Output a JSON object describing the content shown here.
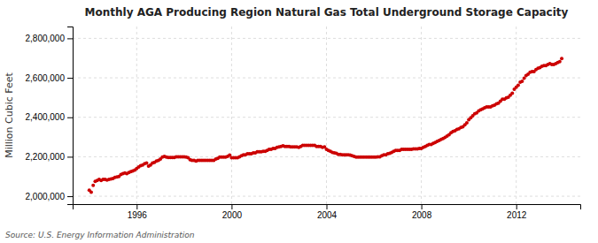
{
  "chart_data": {
    "type": "scatter",
    "title": "Monthly AGA Producing Region Natural Gas Total Underground Storage Capacity",
    "y_label": "Million Cubic Feet",
    "annotations": [
      "Source: U.S. Energy Information Administration"
    ],
    "color": "#CC0000",
    "grid": true,
    "xlim": [
      1993.3,
      2014.7
    ],
    "xticks": [
      1996,
      2000,
      2004,
      2008,
      2012
    ],
    "ylim": [
      1960000,
      2860000
    ],
    "yticks": [
      {
        "value": 2000000,
        "label": "2,000,000"
      },
      {
        "value": 2200000,
        "label": "2,200,000"
      },
      {
        "value": 2400000,
        "label": "2,400,000"
      },
      {
        "value": 2600000,
        "label": "2,600,000"
      },
      {
        "value": 2800000,
        "label": "2,800,000"
      }
    ],
    "x": [
      1994.0,
      1994.083,
      1994.167,
      1994.25,
      1994.333,
      1994.417,
      1994.5,
      1994.583,
      1994.667,
      1994.75,
      1994.833,
      1994.917,
      1995.0,
      1995.083,
      1995.167,
      1995.25,
      1995.333,
      1995.417,
      1995.5,
      1995.583,
      1995.667,
      1995.75,
      1995.833,
      1995.917,
      1996.0,
      1996.083,
      1996.167,
      1996.25,
      1996.333,
      1996.417,
      1996.5,
      1996.583,
      1996.667,
      1996.75,
      1996.833,
      1996.917,
      1997.0,
      1997.083,
      1997.167,
      1997.25,
      1997.333,
      1997.417,
      1997.5,
      1997.583,
      1997.667,
      1997.75,
      1997.833,
      1997.917,
      1998.0,
      1998.083,
      1998.167,
      1998.25,
      1998.333,
      1998.417,
      1998.5,
      1998.583,
      1998.667,
      1998.75,
      1998.833,
      1998.917,
      1999.0,
      1999.083,
      1999.167,
      1999.25,
      1999.333,
      1999.417,
      1999.5,
      1999.583,
      1999.667,
      1999.75,
      1999.833,
      1999.917,
      2000.0,
      2000.083,
      2000.167,
      2000.25,
      2000.333,
      2000.417,
      2000.5,
      2000.583,
      2000.667,
      2000.75,
      2000.833,
      2000.917,
      2001.0,
      2001.083,
      2001.167,
      2001.25,
      2001.333,
      2001.417,
      2001.5,
      2001.583,
      2001.667,
      2001.75,
      2001.833,
      2001.917,
      2002.0,
      2002.083,
      2002.167,
      2002.25,
      2002.333,
      2002.417,
      2002.5,
      2002.583,
      2002.667,
      2002.75,
      2002.833,
      2002.917,
      2003.0,
      2003.083,
      2003.167,
      2003.25,
      2003.333,
      2003.417,
      2003.5,
      2003.583,
      2003.667,
      2003.75,
      2003.833,
      2003.917,
      2004.0,
      2004.083,
      2004.167,
      2004.25,
      2004.333,
      2004.417,
      2004.5,
      2004.583,
      2004.667,
      2004.75,
      2004.833,
      2004.917,
      2005.0,
      2005.083,
      2005.167,
      2005.25,
      2005.333,
      2005.417,
      2005.5,
      2005.583,
      2005.667,
      2005.75,
      2005.833,
      2005.917,
      2006.0,
      2006.083,
      2006.167,
      2006.25,
      2006.333,
      2006.417,
      2006.5,
      2006.583,
      2006.667,
      2006.75,
      2006.833,
      2006.917,
      2007.0,
      2007.083,
      2007.167,
      2007.25,
      2007.333,
      2007.417,
      2007.5,
      2007.583,
      2007.667,
      2007.75,
      2007.833,
      2007.917,
      2008.0,
      2008.083,
      2008.167,
      2008.25,
      2008.333,
      2008.417,
      2008.5,
      2008.583,
      2008.667,
      2008.75,
      2008.833,
      2008.917,
      2009.0,
      2009.083,
      2009.167,
      2009.25,
      2009.333,
      2009.417,
      2009.5,
      2009.583,
      2009.667,
      2009.75,
      2009.833,
      2009.917,
      2010.0,
      2010.083,
      2010.167,
      2010.25,
      2010.333,
      2010.417,
      2010.5,
      2010.583,
      2010.667,
      2010.75,
      2010.833,
      2010.917,
      2011.0,
      2011.083,
      2011.167,
      2011.25,
      2011.333,
      2011.417,
      2011.5,
      2011.583,
      2011.667,
      2011.75,
      2011.833,
      2011.917,
      2012.0,
      2012.083,
      2012.167,
      2012.25,
      2012.333,
      2012.417,
      2012.5,
      2012.583,
      2012.667,
      2012.75,
      2012.833,
      2012.917,
      2013.0,
      2013.083,
      2013.167,
      2013.25,
      2013.333,
      2013.417,
      2013.5,
      2013.583,
      2013.667,
      2013.75,
      2013.833,
      2013.917
    ],
    "values": [
      2030000,
      2020000,
      2055000,
      2075000,
      2080000,
      2085000,
      2080000,
      2085000,
      2085000,
      2082000,
      2085000,
      2088000,
      2090000,
      2095000,
      2098000,
      2100000,
      2110000,
      2115000,
      2118000,
      2115000,
      2120000,
      2125000,
      2128000,
      2132000,
      2140000,
      2148000,
      2155000,
      2158000,
      2165000,
      2168000,
      2152000,
      2158000,
      2168000,
      2172000,
      2178000,
      2182000,
      2188000,
      2198000,
      2202000,
      2198000,
      2196000,
      2196000,
      2196000,
      2196000,
      2200000,
      2200000,
      2200000,
      2200000,
      2200000,
      2198000,
      2195000,
      2185000,
      2182000,
      2182000,
      2178000,
      2182000,
      2182000,
      2182000,
      2182000,
      2182000,
      2182000,
      2182000,
      2182000,
      2182000,
      2188000,
      2192000,
      2198000,
      2198000,
      2198000,
      2198000,
      2202000,
      2208000,
      2195000,
      2195000,
      2195000,
      2195000,
      2200000,
      2205000,
      2210000,
      2210000,
      2215000,
      2215000,
      2215000,
      2220000,
      2220000,
      2225000,
      2225000,
      2225000,
      2228000,
      2228000,
      2232000,
      2238000,
      2238000,
      2242000,
      2242000,
      2248000,
      2250000,
      2252000,
      2255000,
      2252000,
      2252000,
      2252000,
      2250000,
      2250000,
      2250000,
      2250000,
      2248000,
      2252000,
      2258000,
      2258000,
      2258000,
      2258000,
      2258000,
      2258000,
      2258000,
      2252000,
      2252000,
      2252000,
      2248000,
      2250000,
      2238000,
      2232000,
      2228000,
      2222000,
      2220000,
      2218000,
      2212000,
      2212000,
      2210000,
      2210000,
      2210000,
      2210000,
      2208000,
      2205000,
      2202000,
      2198000,
      2198000,
      2198000,
      2198000,
      2198000,
      2198000,
      2198000,
      2198000,
      2198000,
      2198000,
      2198000,
      2200000,
      2200000,
      2205000,
      2210000,
      2210000,
      2215000,
      2218000,
      2222000,
      2228000,
      2232000,
      2232000,
      2232000,
      2238000,
      2238000,
      2238000,
      2238000,
      2238000,
      2238000,
      2240000,
      2240000,
      2240000,
      2242000,
      2242000,
      2248000,
      2252000,
      2258000,
      2262000,
      2262000,
      2268000,
      2272000,
      2278000,
      2282000,
      2288000,
      2292000,
      2298000,
      2305000,
      2312000,
      2322000,
      2328000,
      2332000,
      2338000,
      2342000,
      2348000,
      2352000,
      2362000,
      2372000,
      2388000,
      2398000,
      2408000,
      2418000,
      2422000,
      2432000,
      2438000,
      2442000,
      2448000,
      2452000,
      2452000,
      2452000,
      2458000,
      2462000,
      2468000,
      2472000,
      2482000,
      2492000,
      2492000,
      2498000,
      2502000,
      2512000,
      2522000,
      2542000,
      2552000,
      2562000,
      2578000,
      2582000,
      2598000,
      2612000,
      2618000,
      2628000,
      2632000,
      2632000,
      2642000,
      2648000,
      2652000,
      2658000,
      2662000,
      2662000,
      2668000,
      2672000,
      2668000,
      2668000,
      2672000,
      2678000,
      2682000,
      2698000
    ]
  }
}
